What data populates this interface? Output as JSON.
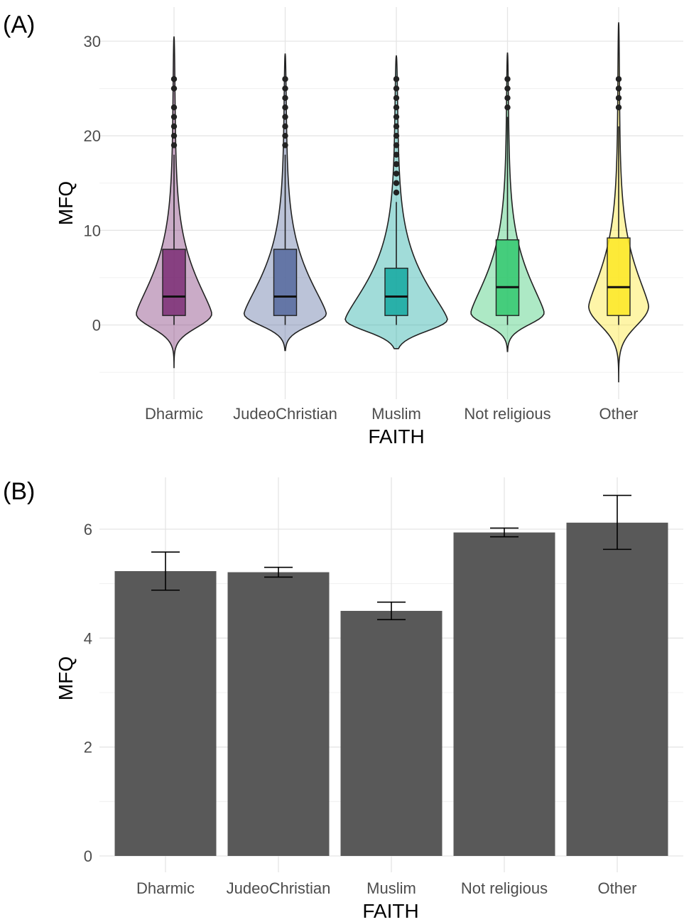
{
  "panels": {
    "a": {
      "label": "(A)"
    },
    "b": {
      "label": "(B)"
    }
  },
  "chart_data": [
    {
      "type": "violin",
      "panel": "(A)",
      "title": "",
      "xlabel": "FAITH",
      "ylabel": "MFQ",
      "categories": [
        "Dharmic",
        "JudeoChristian",
        "Muslim",
        "Not religious",
        "Other"
      ],
      "ylim": [
        -8,
        33
      ],
      "yticks": [
        0,
        10,
        20,
        30
      ],
      "grid": true,
      "colors": [
        "#7b2d74",
        "#55699e",
        "#14a8a0",
        "#33c86e",
        "#fde725"
      ],
      "violin_range": [
        [
          -4.5,
          30.5
        ],
        [
          -2.7,
          28.7
        ],
        [
          -2.5,
          28.5
        ],
        [
          -2.8,
          28.8
        ],
        [
          -6,
          32
        ]
      ],
      "violin_peak_y": [
        1.2,
        1.2,
        0.6,
        1.3,
        2.0
      ],
      "violin_halfwidth": [
        0.34,
        0.37,
        0.46,
        0.33,
        0.27
      ],
      "box": [
        {
          "q1": 1,
          "median": 3,
          "q3": 8,
          "whisker_low": 0,
          "whisker_high": 18
        },
        {
          "q1": 1,
          "median": 3,
          "q3": 8,
          "whisker_low": 0,
          "whisker_high": 18
        },
        {
          "q1": 1,
          "median": 3,
          "q3": 6,
          "whisker_low": 0,
          "whisker_high": 13
        },
        {
          "q1": 1,
          "median": 4,
          "q3": 9,
          "whisker_low": 0,
          "whisker_high": 22
        },
        {
          "q1": 1,
          "median": 4,
          "q3": 9.2,
          "whisker_low": 0,
          "whisker_high": 21
        }
      ],
      "outliers": [
        [
          19,
          20,
          21,
          22,
          23,
          25,
          26
        ],
        [
          19,
          20,
          21,
          22,
          23,
          24,
          25,
          26
        ],
        [
          14,
          15,
          16,
          17,
          18,
          19,
          20,
          21,
          22,
          23,
          24,
          25,
          26
        ],
        [
          23,
          24,
          25,
          26
        ],
        [
          23,
          24,
          25,
          26
        ]
      ]
    },
    {
      "type": "bar",
      "panel": "(B)",
      "title": "",
      "xlabel": "FAITH",
      "ylabel": "MFQ",
      "categories": [
        "Dharmic",
        "JudeoChristian",
        "Muslim",
        "Not religious",
        "Other"
      ],
      "values": [
        5.23,
        5.21,
        4.5,
        5.94,
        6.12
      ],
      "error_low": [
        4.88,
        5.12,
        4.34,
        5.86,
        5.63
      ],
      "error_high": [
        5.58,
        5.3,
        4.66,
        6.02,
        6.62
      ],
      "ylim": [
        0,
        6.9
      ],
      "yticks": [
        0,
        2,
        4,
        6
      ],
      "grid": true,
      "bar_color": "#595959"
    }
  ]
}
